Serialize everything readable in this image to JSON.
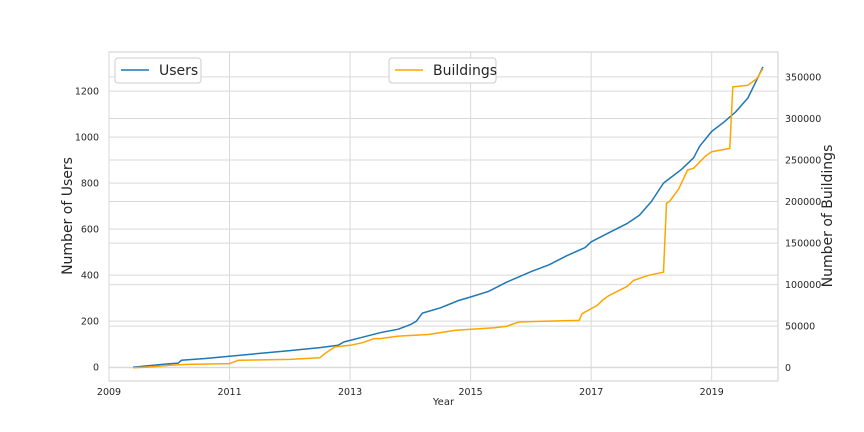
{
  "chart_data": {
    "type": "line",
    "xlabel": "Year",
    "ylabel_left": "Number of Users",
    "ylabel_right": "Number of Buildings",
    "xlim": [
      2009.0,
      2020.1
    ],
    "ylim_left": [
      -60,
      1370
    ],
    "ylim_right": [
      -16000,
      380000
    ],
    "x_ticks": [
      "2009",
      "2011",
      "2013",
      "2015",
      "2017",
      "2019"
    ],
    "y_ticks_left": [
      "0",
      "200",
      "400",
      "600",
      "800",
      "1000",
      "1200"
    ],
    "y_ticks_right": [
      "0",
      "50000",
      "100000",
      "150000",
      "200000",
      "250000",
      "300000",
      "350000"
    ],
    "grid": true,
    "legend_left_placement": "top-left",
    "legend_right_placement": "top-center",
    "series": [
      {
        "name": "Users",
        "axis": "left",
        "color": "#1f77b4",
        "x": [
          2009.4,
          2009.6,
          2009.8,
          2010.0,
          2010.15,
          2010.2,
          2010.6,
          2011.0,
          2011.5,
          2012.0,
          2012.5,
          2012.8,
          2012.9,
          2013.2,
          2013.5,
          2013.8,
          2014.0,
          2014.1,
          2014.2,
          2014.5,
          2014.8,
          2015.0,
          2015.3,
          2015.6,
          2016.0,
          2016.3,
          2016.6,
          2016.9,
          2017.0,
          2017.3,
          2017.6,
          2017.8,
          2018.0,
          2018.2,
          2018.5,
          2018.7,
          2018.8,
          2019.0,
          2019.2,
          2019.4,
          2019.6,
          2019.75,
          2019.85
        ],
        "y": [
          0,
          5,
          10,
          15,
          18,
          30,
          38,
          48,
          60,
          72,
          85,
          95,
          110,
          130,
          150,
          165,
          185,
          200,
          235,
          258,
          290,
          305,
          330,
          370,
          415,
          445,
          485,
          520,
          545,
          585,
          625,
          660,
          720,
          800,
          860,
          910,
          960,
          1025,
          1065,
          1110,
          1170,
          1250,
          1305
        ]
      },
      {
        "name": "Buildings",
        "axis": "right",
        "color": "#ffa500",
        "x": [
          2009.4,
          2009.7,
          2010.0,
          2010.3,
          2011.0,
          2011.15,
          2012.0,
          2012.5,
          2012.6,
          2012.75,
          2013.0,
          2013.2,
          2013.4,
          2013.5,
          2013.8,
          2014.3,
          2014.75,
          2015.4,
          2015.6,
          2015.8,
          2016.2,
          2016.8,
          2016.85,
          2017.1,
          2017.2,
          2017.3,
          2017.6,
          2017.7,
          2017.9,
          2018.0,
          2018.2,
          2018.25,
          2018.3,
          2018.45,
          2018.6,
          2018.7,
          2018.9,
          2019.0,
          2019.3,
          2019.35,
          2019.6,
          2019.75,
          2019.85
        ],
        "y": [
          0,
          1000,
          3000,
          4000,
          5000,
          9000,
          10000,
          12000,
          18000,
          25000,
          27000,
          30000,
          35000,
          35000,
          38000,
          40000,
          45000,
          48000,
          50000,
          55000,
          56000,
          57000,
          65000,
          75000,
          82000,
          87000,
          98000,
          105000,
          110000,
          112000,
          115000,
          198000,
          200000,
          215000,
          238000,
          240000,
          255000,
          260000,
          264000,
          338000,
          340000,
          348000,
          360000
        ]
      }
    ]
  }
}
